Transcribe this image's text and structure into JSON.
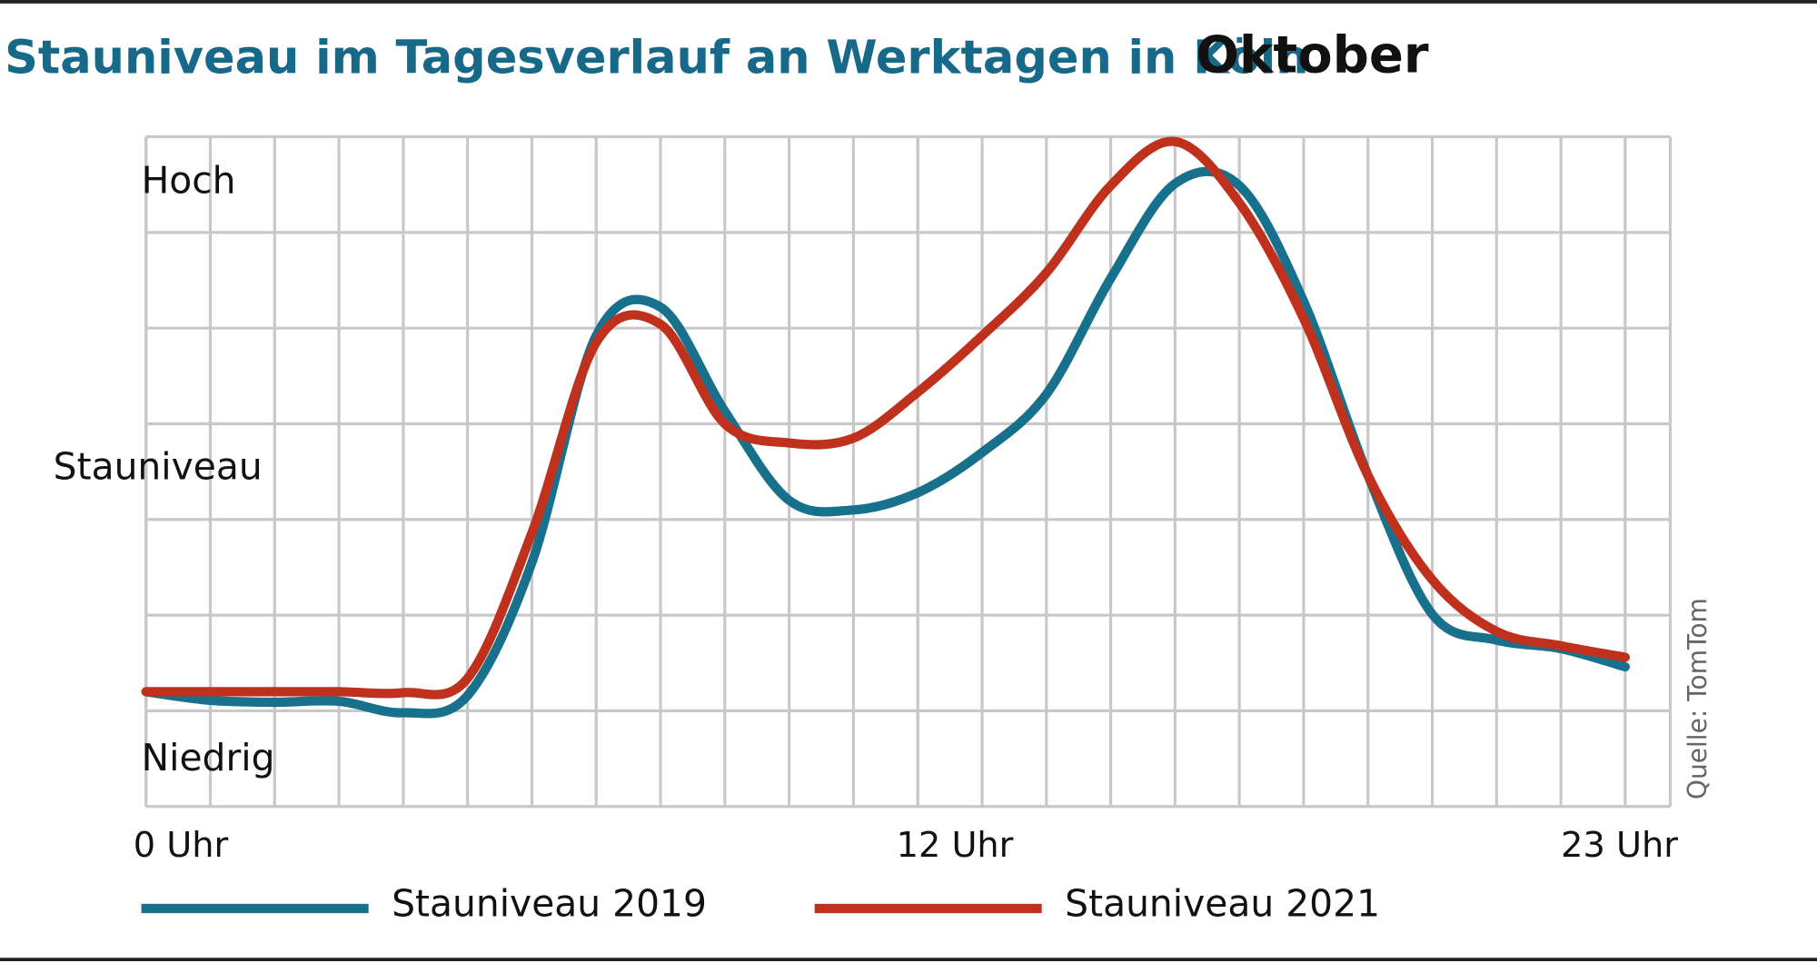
{
  "chart_data": {
    "type": "line",
    "title": "Stauniveau im Tagesverlauf an Werktagen in Köln",
    "subtitle": "Oktober",
    "ylabel": "Stauniveau",
    "ylabel_high": "Hoch",
    "ylabel_low": "Niedrig",
    "source": "Quelle: TomTom",
    "x": [
      0,
      1,
      2,
      3,
      4,
      5,
      6,
      7,
      8,
      9,
      10,
      11,
      12,
      13,
      14,
      15,
      16,
      17,
      18,
      19,
      20,
      21,
      22,
      23
    ],
    "xlim": [
      0,
      23.7
    ],
    "xticks": [
      {
        "value": 0,
        "label": "0 Uhr"
      },
      {
        "value": 12,
        "label": "12 Uhr"
      },
      {
        "value": 23,
        "label": "23 Uhr"
      }
    ],
    "ylim": [
      0,
      7
    ],
    "grid": true,
    "series": [
      {
        "name": "Stauniveau 2019",
        "color": "#17708c",
        "values": [
          1.2,
          1.11,
          1.09,
          1.1,
          0.98,
          1.16,
          2.55,
          4.92,
          5.22,
          4.13,
          3.2,
          3.1,
          3.28,
          3.7,
          4.31,
          5.52,
          6.51,
          6.49,
          5.28,
          3.46,
          2.01,
          1.74,
          1.65,
          1.46
        ]
      },
      {
        "name": "Stauniveau 2021",
        "color": "#c0311d",
        "values": [
          1.2,
          1.2,
          1.2,
          1.2,
          1.19,
          1.34,
          2.86,
          4.85,
          5.04,
          4.0,
          3.8,
          3.85,
          4.33,
          4.92,
          5.58,
          6.49,
          6.95,
          6.31,
          5.1,
          3.46,
          2.37,
          1.83,
          1.68,
          1.56
        ]
      }
    ]
  }
}
